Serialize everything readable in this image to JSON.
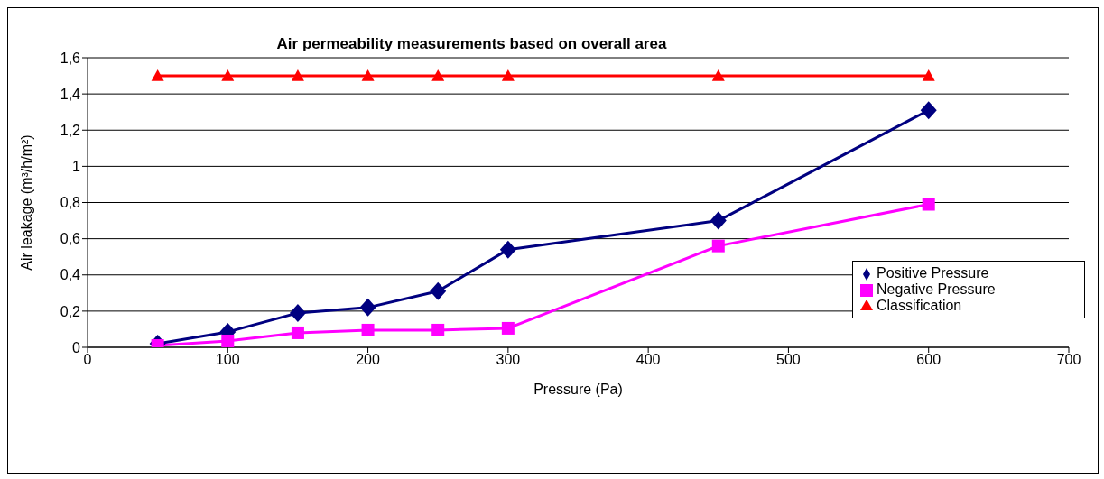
{
  "chart_data": {
    "type": "line",
    "title": "Air permeability measurements based on overall area",
    "xlabel": "Pressure (Pa)",
    "ylabel": "Air leakage (m³/h/m²)",
    "x": [
      50,
      100,
      150,
      200,
      250,
      300,
      450,
      600
    ],
    "series": [
      {
        "name": "Positive Pressure",
        "color": "#000080",
        "marker": "diamond",
        "values": [
          0.02,
          0.085,
          0.19,
          0.22,
          0.31,
          0.54,
          0.7,
          1.31
        ]
      },
      {
        "name": "Negative Pressure",
        "color": "#ff00ff",
        "marker": "square",
        "values": [
          0.01,
          0.035,
          0.08,
          0.095,
          0.095,
          0.105,
          0.56,
          0.79
        ]
      },
      {
        "name": "Classification",
        "color": "#ff0000",
        "marker": "triangle",
        "values": [
          1.5,
          1.5,
          1.5,
          1.5,
          1.5,
          1.5,
          1.5,
          1.5
        ]
      }
    ],
    "xlim": [
      0,
      700
    ],
    "xticks": [
      0,
      100,
      200,
      300,
      400,
      500,
      600,
      700
    ],
    "ylim": [
      0,
      1.6
    ],
    "yticks": [
      0,
      {
        "value": 0.2,
        "label": "0,2"
      },
      {
        "value": 0.4,
        "label": "0,4"
      },
      {
        "value": 0.6,
        "label": "0,6"
      },
      {
        "value": 0.8,
        "label": "0,8"
      },
      1,
      {
        "value": 1.2,
        "label": "1,2"
      },
      {
        "value": 1.4,
        "label": "1,4"
      },
      {
        "value": 1.6,
        "label": "1,6"
      }
    ],
    "grid": "y",
    "legend": "right",
    "line_style": "solid"
  }
}
